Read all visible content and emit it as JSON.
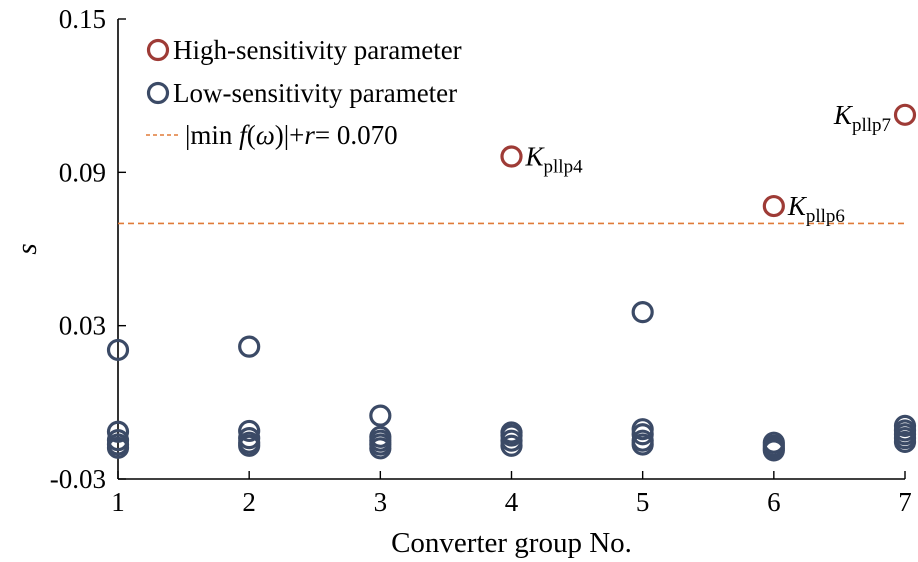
{
  "chart_data": {
    "type": "scatter",
    "title": "",
    "xlabel": "Converter group No.",
    "ylabel": "s",
    "xlim": [
      1,
      7
    ],
    "ylim": [
      -0.03,
      0.15
    ],
    "xticks": [
      "1",
      "2",
      "3",
      "4",
      "5",
      "6",
      "7"
    ],
    "yticks": [
      "0.15",
      "0.09",
      "0.03",
      "-0.03"
    ],
    "yticks_values": [
      0.15,
      0.09,
      0.03,
      -0.03
    ],
    "grid": false,
    "legend_position": "top-left",
    "colors": {
      "high": "#9e3b36",
      "low": "#3b4a66",
      "threshold": "#e07b39"
    },
    "series": [
      {
        "name": "High-sensitivity parameter",
        "key": "high",
        "points": [
          {
            "x": 4,
            "y": 0.0962,
            "label_main": "K",
            "label_sub": "pllp4"
          },
          {
            "x": 6,
            "y": 0.0768,
            "label_main": "K",
            "label_sub": "pllp6"
          },
          {
            "x": 7,
            "y": 0.1125,
            "label_main": "K",
            "label_sub": "pllp7"
          }
        ]
      },
      {
        "name": "Low-sensitivity parameter",
        "key": "low",
        "points": [
          {
            "x": 1,
            "y": 0.0205
          },
          {
            "x": 1,
            "y": -0.0115
          },
          {
            "x": 1,
            "y": -0.0148
          },
          {
            "x": 1,
            "y": -0.0165
          },
          {
            "x": 1,
            "y": -0.0178
          },
          {
            "x": 2,
            "y": 0.0218
          },
          {
            "x": 2,
            "y": -0.0112
          },
          {
            "x": 2,
            "y": -0.014
          },
          {
            "x": 2,
            "y": -0.0158
          },
          {
            "x": 2,
            "y": -0.017
          },
          {
            "x": 3,
            "y": -0.0052
          },
          {
            "x": 3,
            "y": -0.0135
          },
          {
            "x": 3,
            "y": -0.015
          },
          {
            "x": 3,
            "y": -0.0165
          },
          {
            "x": 3,
            "y": -0.018
          },
          {
            "x": 4,
            "y": -0.0118
          },
          {
            "x": 4,
            "y": -0.013
          },
          {
            "x": 4,
            "y": -0.015
          },
          {
            "x": 4,
            "y": -0.017
          },
          {
            "x": 5,
            "y": 0.0353
          },
          {
            "x": 5,
            "y": -0.0105
          },
          {
            "x": 5,
            "y": -0.0125
          },
          {
            "x": 5,
            "y": -0.015
          },
          {
            "x": 5,
            "y": -0.0165
          },
          {
            "x": 6,
            "y": -0.0158
          },
          {
            "x": 6,
            "y": -0.017
          },
          {
            "x": 6,
            "y": -0.018
          },
          {
            "x": 6,
            "y": -0.0188
          },
          {
            "x": 7,
            "y": -0.0092
          },
          {
            "x": 7,
            "y": -0.011
          },
          {
            "x": 7,
            "y": -0.0125
          },
          {
            "x": 7,
            "y": -0.014
          },
          {
            "x": 7,
            "y": -0.0155
          }
        ]
      }
    ],
    "threshold": {
      "y": 0.07,
      "label_parts": [
        "|min ",
        "f",
        "(",
        "ω",
        ")|+",
        "r",
        "= 0.070"
      ]
    }
  }
}
